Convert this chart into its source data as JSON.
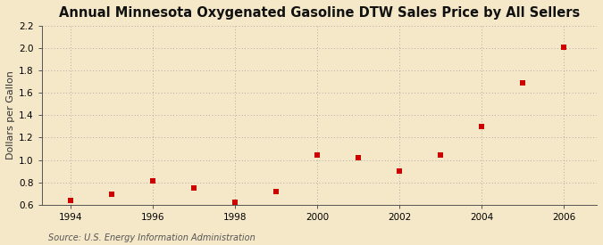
{
  "title": "Annual Minnesota Oxygenated Gasoline DTW Sales Price by All Sellers",
  "ylabel": "Dollars per Gallon",
  "source": "Source: U.S. Energy Information Administration",
  "background_color": "#f5e8c8",
  "plot_bg_color": "#f5e8c8",
  "years": [
    1994,
    1995,
    1996,
    1997,
    1998,
    1999,
    2000,
    2001,
    2002,
    2003,
    2004,
    2005,
    2006
  ],
  "values": [
    0.64,
    0.69,
    0.81,
    0.75,
    0.62,
    0.72,
    1.04,
    1.02,
    0.9,
    1.04,
    1.3,
    1.69,
    2.01
  ],
  "marker_color": "#cc0000",
  "marker_size": 4,
  "xlim": [
    1993.3,
    2006.8
  ],
  "ylim": [
    0.6,
    2.2
  ],
  "yticks": [
    0.6,
    0.8,
    1.0,
    1.2,
    1.4,
    1.6,
    1.8,
    2.0,
    2.2
  ],
  "xticks": [
    1994,
    1996,
    1998,
    2000,
    2002,
    2004,
    2006
  ],
  "title_fontsize": 10.5,
  "label_fontsize": 8,
  "tick_fontsize": 7.5,
  "source_fontsize": 7
}
